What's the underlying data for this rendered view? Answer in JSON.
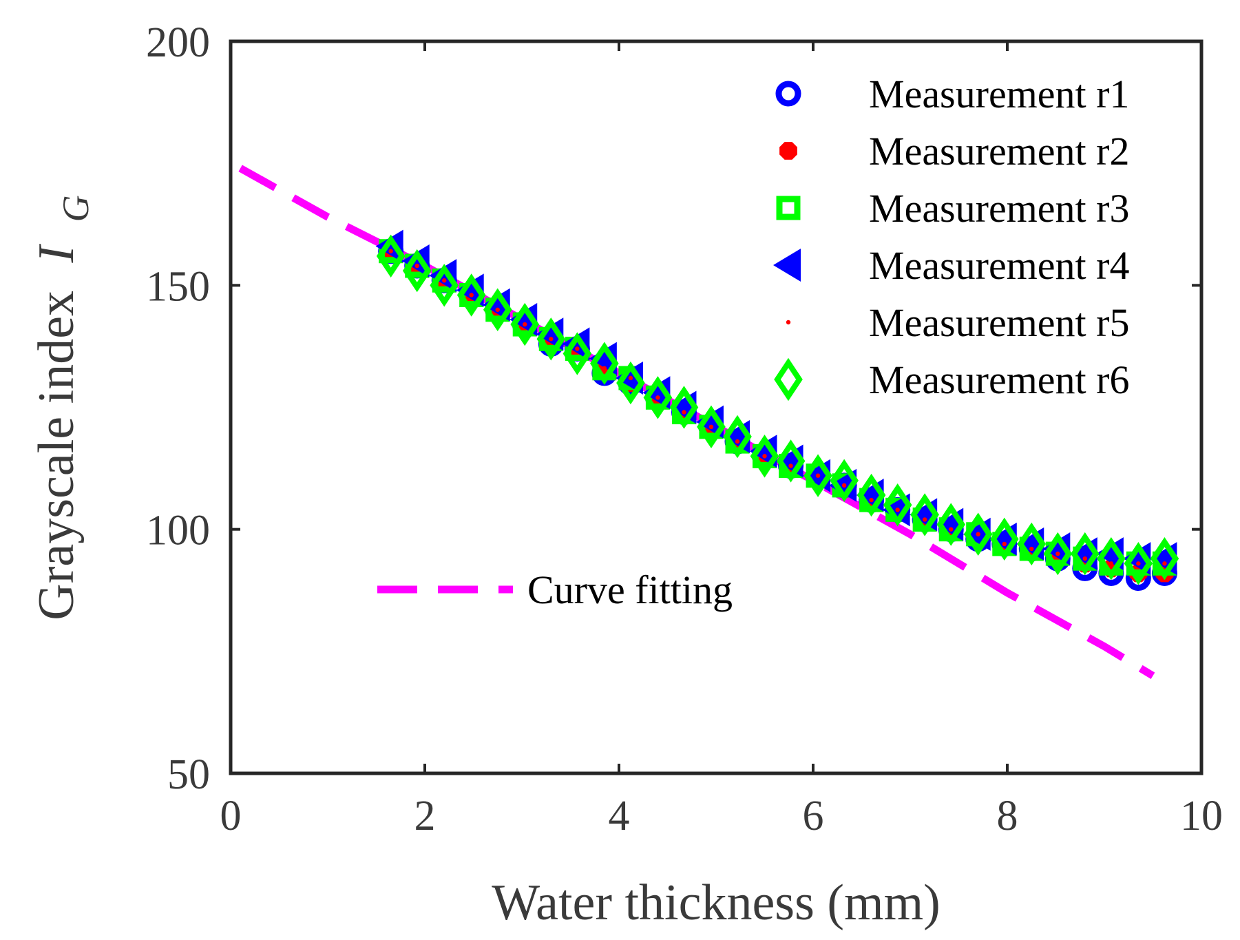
{
  "chart_data": {
    "type": "scatter",
    "xlabel": "Water thickness (mm)",
    "ylabel_main": "Grayscale index",
    "ylabel_symbol": "I",
    "ylabel_subscript": "G",
    "xlim": [
      0,
      10
    ],
    "ylim": [
      50,
      200
    ],
    "xticks": [
      0,
      2,
      4,
      6,
      8,
      10
    ],
    "yticks": [
      50,
      100,
      150,
      200
    ],
    "grid": false,
    "legend_placement": "top-right",
    "x": [
      1.65,
      1.92,
      2.2,
      2.48,
      2.75,
      3.03,
      3.3,
      3.57,
      3.85,
      4.12,
      4.4,
      4.67,
      4.95,
      5.22,
      5.5,
      5.77,
      6.05,
      6.32,
      6.6,
      6.87,
      7.15,
      7.42,
      7.7,
      7.97,
      8.25,
      8.52,
      8.8,
      9.07,
      9.35,
      9.62
    ],
    "series": [
      {
        "name": "Measurement r1",
        "marker": "circle-open",
        "color": "#0000ff",
        "values": [
          157,
          154,
          151,
          148,
          145,
          142,
          138,
          137,
          132,
          130,
          127,
          124,
          121,
          118,
          115,
          113,
          111,
          109,
          106,
          104,
          102,
          100,
          98,
          97,
          96,
          94,
          92,
          91,
          90,
          91
        ]
      },
      {
        "name": "Measurement r2",
        "marker": "octagon-filled",
        "color": "#ff0000",
        "values": [
          157,
          154,
          151,
          148,
          145,
          142,
          139,
          137,
          133,
          130,
          127,
          124,
          121,
          118,
          115,
          113,
          111,
          109,
          106,
          104,
          102,
          100,
          99,
          97,
          96,
          95,
          93,
          92,
          91,
          91
        ]
      },
      {
        "name": "Measurement r3",
        "marker": "square-open",
        "color": "#00ff00",
        "values": [
          157,
          154,
          151,
          148,
          145,
          142,
          139,
          137,
          133,
          131,
          127,
          124,
          121,
          118,
          115,
          113,
          111,
          109,
          106,
          104,
          102,
          100,
          99,
          97,
          96,
          95,
          94,
          93,
          93,
          93
        ]
      },
      {
        "name": "Measurement r4",
        "marker": "triangle-left",
        "color": "#0000ff",
        "values": [
          158,
          155,
          152,
          149,
          146,
          143,
          140,
          138,
          135,
          131,
          128,
          125,
          122,
          119,
          116,
          114,
          111,
          109,
          107,
          104,
          103,
          101,
          99,
          98,
          97,
          96,
          95,
          95,
          94,
          94
        ]
      },
      {
        "name": "Measurement r5",
        "marker": "point",
        "color": "#ff0000",
        "values": [
          157,
          154,
          151,
          148,
          145,
          142,
          139,
          137,
          133,
          131,
          127,
          124,
          121,
          118,
          115,
          113,
          111,
          109,
          106,
          104,
          102,
          100,
          99,
          97,
          96,
          95,
          94,
          93,
          93,
          93
        ]
      },
      {
        "name": "Measurement r6",
        "marker": "diamond-open",
        "color": "#00ff00",
        "values": [
          156,
          153,
          150,
          148,
          145,
          142,
          139,
          136,
          134,
          130,
          127,
          125,
          121,
          119,
          115,
          114,
          111,
          110,
          107,
          105,
          103,
          101,
          99,
          98,
          97,
          95,
          95,
          94,
          93,
          94
        ]
      }
    ],
    "fit": {
      "name": "Curve fitting",
      "style": "dashed",
      "color": "#ff00ff",
      "x": [
        0.1,
        1.0,
        2.0,
        3.0,
        4.0,
        5.0,
        6.0,
        7.0,
        8.0,
        9.0,
        9.5
      ],
      "y": [
        174,
        164,
        154,
        143,
        132,
        121,
        110,
        99,
        87,
        76,
        70
      ]
    }
  }
}
